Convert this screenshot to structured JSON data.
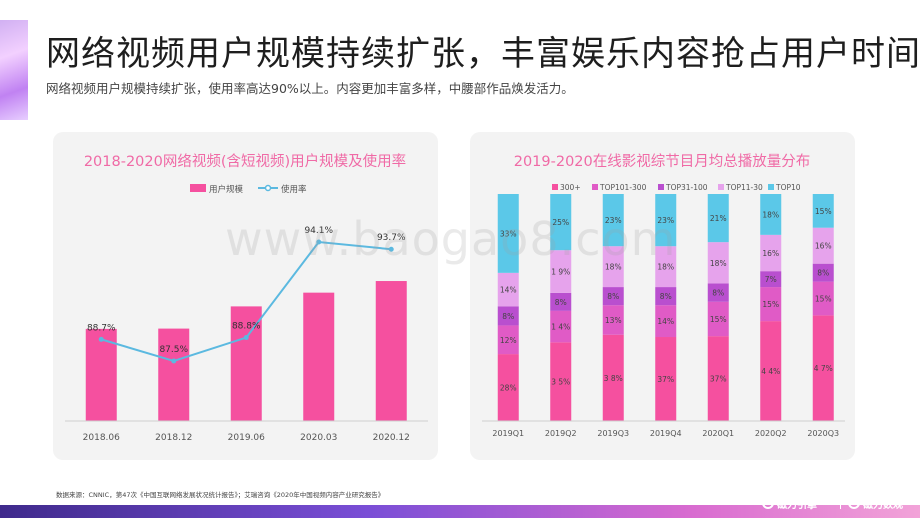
{
  "page": {
    "title": "网络视频用户规模持续扩张，丰富娱乐内容抢占用户时间",
    "subtitle": "网络视频用户规模持续扩张，使用率高达90%以上。内容更加丰富多样，中腰部作品焕发活力。",
    "source": "数据来源：CNNIC，第47次《中国互联网络发展状况统计报告》；艾瑞咨询《2020年中国视频内容产业研究报告》",
    "watermark": "www.baogao8.com",
    "brand_left": "磁力引擎",
    "brand_right": "磁力数观",
    "colors": {
      "pink": "#f5509f",
      "line": "#5bb9e0",
      "title_pink": "#f06aa6"
    }
  },
  "chart_data": [
    {
      "type": "bar",
      "title": "2018-2020网络视频(含短视频)用户规模及使用率",
      "categories": [
        "2018.06",
        "2018.12",
        "2019.06",
        "2020.03",
        "2020.12"
      ],
      "series": [
        {
          "name": "用户规模",
          "type": "bar",
          "color": "#f5509f",
          "values": [
            6.1,
            6.12,
            7.59,
            8.5,
            9.27
          ]
        },
        {
          "name": "使用率",
          "type": "line",
          "color": "#5bb9e0",
          "values": [
            88.7,
            87.5,
            88.8,
            94.1,
            93.7
          ],
          "labels": [
            "88.7%",
            "87.5%",
            "88.8%",
            "94.1%",
            "93.7%"
          ]
        }
      ],
      "legend": "top-center",
      "grid": false
    },
    {
      "type": "bar",
      "stacked": true,
      "title": "2019-2020在线影视综节目月均总播放量分布",
      "categories": [
        "2019Q1",
        "2019Q2",
        "2019Q3",
        "2019Q4",
        "2020Q1",
        "2020Q2",
        "2020Q3"
      ],
      "series": [
        {
          "name": "300+",
          "color": "#f5509f",
          "values": [
            28,
            35,
            38,
            37,
            37,
            44,
            47
          ],
          "labels": [
            "28%",
            "3 5%",
            "3 8%",
            "37%",
            "37%",
            "4 4%",
            "4 7%"
          ]
        },
        {
          "name": "TOP101-300",
          "color": "#e05bc6",
          "values": [
            12,
            14,
            13,
            14,
            15,
            15,
            15
          ],
          "labels": [
            "12%",
            "1 4%",
            "13%",
            "14%",
            "15%",
            "15%",
            "15%"
          ]
        },
        {
          "name": "TOP31-100",
          "color": "#b94fcf",
          "values": [
            8,
            8,
            8,
            8,
            8,
            7,
            8
          ],
          "labels": [
            "8%",
            "8%",
            "8%",
            "8%",
            "8%",
            "7%",
            "8%"
          ]
        },
        {
          "name": "TOP11-30",
          "color": "#e6a3ec",
          "values": [
            14,
            19,
            18,
            18,
            18,
            16,
            16
          ],
          "labels": [
            "14%",
            "1 9%",
            "18%",
            "18%",
            "18%",
            "16%",
            "16%"
          ]
        },
        {
          "name": "TOP10",
          "color": "#5bc8e8",
          "values": [
            33,
            25,
            23,
            23,
            21,
            18,
            15
          ],
          "labels": [
            "33%",
            "25%",
            "23%",
            "23%",
            "21%",
            "18%",
            "15%"
          ]
        }
      ],
      "legend": "top-center",
      "grid": false
    }
  ]
}
